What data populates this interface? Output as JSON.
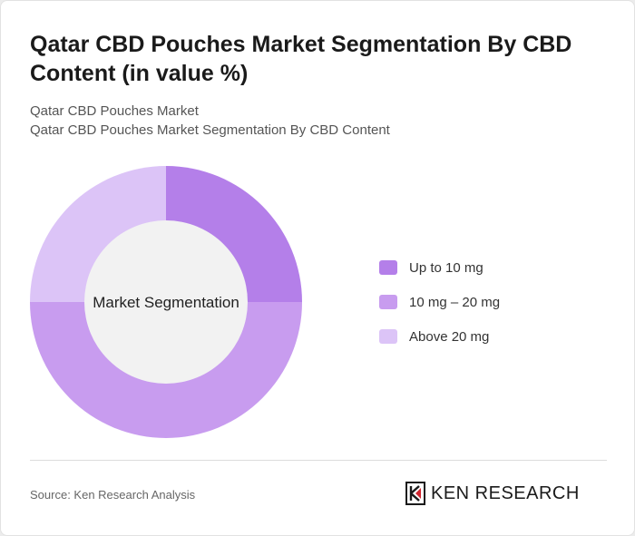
{
  "title": "Qatar CBD Pouches Market Segmentation By CBD Content (in value %)",
  "subtitle_line1": "Qatar CBD Pouches Market",
  "subtitle_line2": "Qatar CBD Pouches Market Segmentation By CBD Content",
  "chart_data": {
    "type": "pie",
    "variant": "donut",
    "center_label": "Market Segmentation",
    "categories": [
      "Up to 10 mg",
      "10 mg – 20 mg",
      "Above 20 mg"
    ],
    "values": [
      25,
      50,
      25
    ],
    "colors": [
      "#b47fe9",
      "#c89cef",
      "#dcc4f7"
    ],
    "legend_position": "right"
  },
  "footer": {
    "source": "Source: Ken Research Analysis",
    "logo_text": "KEN RESEARCH"
  }
}
